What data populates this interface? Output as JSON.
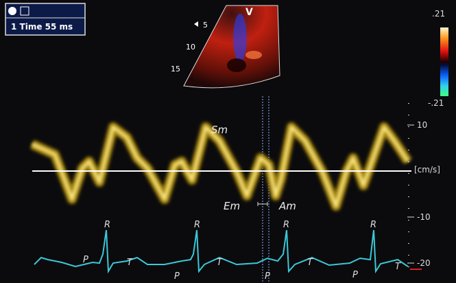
{
  "header": {
    "mode": "1 Time 55 ms"
  },
  "sector": {
    "view": "V",
    "depths": [
      "5",
      "10",
      "15"
    ]
  },
  "color_scale": {
    "max": ".21",
    "min": "-.21"
  },
  "velocity_scale": {
    "ticks": [
      "10",
      "-10",
      "-20"
    ],
    "unit": "[cm/s]"
  },
  "waves": {
    "systolic": "Sm",
    "early": "Em",
    "atrial": "Am"
  },
  "ecg": {
    "r": [
      "R",
      "R",
      "R",
      "R"
    ],
    "t": [
      "T",
      "T",
      "T",
      "T"
    ],
    "p": [
      "P",
      "P",
      "P",
      "P"
    ]
  }
}
